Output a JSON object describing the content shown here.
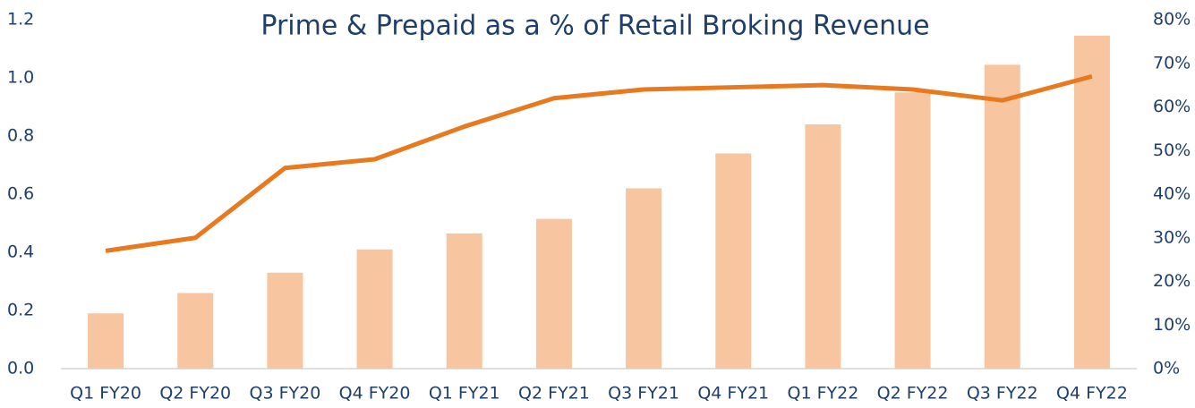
{
  "chart_data": {
    "type": "bar_line",
    "title": "Prime & Prepaid as a % of Retail Broking Revenue",
    "categories": [
      "Q1 FY20",
      "Q2 FY20",
      "Q3 FY20",
      "Q4 FY20",
      "Q1 FY21",
      "Q2 FY21",
      "Q3 FY21",
      "Q4 FY21",
      "Q1 FY22",
      "Q2 FY22",
      "Q3 FY22",
      "Q4 FY22"
    ],
    "series": [
      {
        "type": "bar",
        "color": "#f7c6a0",
        "values": [
          0.19,
          0.26,
          0.33,
          0.41,
          0.465,
          0.515,
          0.62,
          0.74,
          0.84,
          0.95,
          1.045,
          1.145
        ]
      },
      {
        "type": "line",
        "axis": "y2",
        "color": "#e8791e",
        "values": [
          27,
          30,
          46,
          48,
          55.5,
          62,
          64,
          64.5,
          65,
          64,
          61.5,
          67
        ]
      }
    ],
    "ylim": [
      0,
      1.2
    ],
    "yticks": [
      {
        "value": 0,
        "label": "0.0"
      },
      0.2,
      0.4,
      0.6,
      0.8,
      {
        "value": 1,
        "label": "1.0"
      },
      1.2
    ],
    "y2lim": [
      0,
      80
    ],
    "y2ticks": [
      {
        "value": 0,
        "label": "0%"
      },
      {
        "value": 10,
        "label": "10%"
      },
      {
        "value": 20,
        "label": "20%"
      },
      {
        "value": 30,
        "label": "30%"
      },
      {
        "value": 40,
        "label": "40%"
      },
      {
        "value": 50,
        "label": "50%"
      },
      {
        "value": 60,
        "label": "60%"
      },
      {
        "value": 70,
        "label": "70%"
      },
      {
        "value": 80,
        "label": "80%"
      }
    ]
  }
}
